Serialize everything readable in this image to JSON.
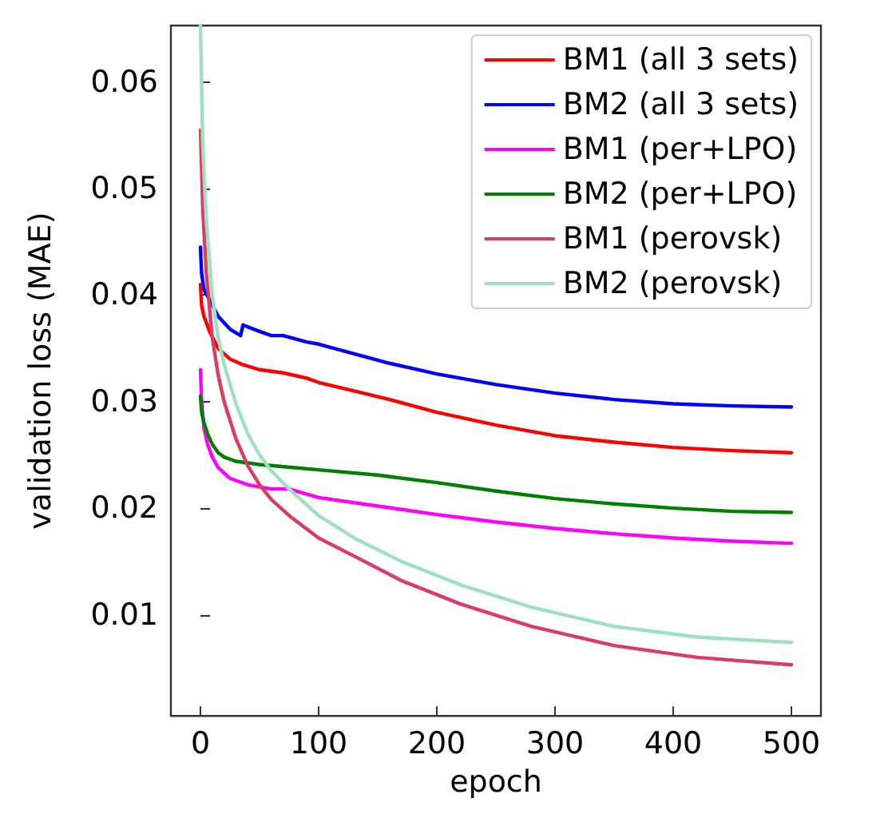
{
  "chart_data": {
    "type": "line",
    "xlabel": "epoch",
    "ylabel": "validation loss (MAE)",
    "xlim": [
      -25,
      525
    ],
    "xticks": [
      0,
      100,
      200,
      300,
      400,
      500
    ],
    "ylim": [
      0.0005,
      0.0653
    ],
    "yticks": [
      0.01,
      0.02,
      0.03,
      0.04,
      0.05,
      0.06
    ],
    "grid": false,
    "legend": "top right",
    "line_style": "solid",
    "marker": "none",
    "series": [
      {
        "name": "BM1 (all 3 sets)",
        "color": "#ff0000",
        "x": [
          0,
          1,
          3,
          8,
          15,
          20,
          25,
          35,
          50,
          70,
          90,
          100,
          130,
          160,
          200,
          250,
          300,
          350,
          400,
          450,
          500
        ],
        "values": [
          0.041,
          0.039,
          0.038,
          0.0365,
          0.035,
          0.0345,
          0.034,
          0.0335,
          0.033,
          0.0327,
          0.0322,
          0.0318,
          0.031,
          0.0302,
          0.029,
          0.0278,
          0.0268,
          0.0262,
          0.0257,
          0.0254,
          0.0252
        ]
      },
      {
        "name": "BM2 (all 3 sets)",
        "color": "#0000ff",
        "x": [
          0,
          1,
          3,
          8,
          15,
          25,
          34,
          36,
          45,
          60,
          70,
          90,
          100,
          130,
          160,
          200,
          250,
          300,
          350,
          400,
          450,
          500
        ],
        "values": [
          0.0445,
          0.042,
          0.0405,
          0.0395,
          0.038,
          0.0368,
          0.0362,
          0.0372,
          0.0368,
          0.0362,
          0.0362,
          0.0356,
          0.0354,
          0.0345,
          0.0336,
          0.0326,
          0.0316,
          0.0308,
          0.0302,
          0.0298,
          0.0296,
          0.0295
        ]
      },
      {
        "name": "BM1 (per+LPO)",
        "color": "#ff00ff",
        "x": [
          0,
          1,
          3,
          6,
          10,
          15,
          25,
          40,
          60,
          75,
          100,
          150,
          200,
          250,
          300,
          350,
          400,
          450,
          500
        ],
        "values": [
          0.033,
          0.03,
          0.0275,
          0.026,
          0.0248,
          0.0238,
          0.0228,
          0.0222,
          0.0218,
          0.0218,
          0.021,
          0.0202,
          0.0194,
          0.0187,
          0.0181,
          0.0176,
          0.0172,
          0.0169,
          0.0167
        ]
      },
      {
        "name": "BM2 (per+LPO)",
        "color": "#008000",
        "x": [
          0,
          1,
          3,
          6,
          10,
          15,
          20,
          30,
          50,
          80,
          100,
          150,
          200,
          250,
          300,
          350,
          400,
          450,
          500
        ],
        "values": [
          0.0305,
          0.029,
          0.028,
          0.027,
          0.026,
          0.0252,
          0.0248,
          0.0244,
          0.0241,
          0.0238,
          0.0236,
          0.0231,
          0.0224,
          0.0216,
          0.0209,
          0.0204,
          0.02,
          0.0197,
          0.0196
        ]
      },
      {
        "name": "BM1 (perovsk)",
        "color": "#dc3b63",
        "x": [
          0,
          2,
          5,
          10,
          15,
          20,
          30,
          40,
          50,
          60,
          75,
          100,
          130,
          170,
          220,
          280,
          350,
          420,
          500
        ],
        "values": [
          0.0555,
          0.048,
          0.042,
          0.036,
          0.0325,
          0.03,
          0.0265,
          0.024,
          0.0222,
          0.0208,
          0.0193,
          0.0172,
          0.0155,
          0.0132,
          0.011,
          0.0089,
          0.0071,
          0.006,
          0.0053
        ]
      },
      {
        "name": "BM2 (perovsk)",
        "color": "#9fe0c0",
        "x": [
          0,
          2,
          5,
          10,
          15,
          20,
          30,
          40,
          50,
          60,
          75,
          100,
          130,
          170,
          220,
          280,
          350,
          420,
          500
        ],
        "values": [
          0.0653,
          0.054,
          0.047,
          0.04,
          0.036,
          0.0335,
          0.0298,
          0.027,
          0.025,
          0.0235,
          0.0218,
          0.0193,
          0.0172,
          0.015,
          0.0128,
          0.0107,
          0.0089,
          0.0079,
          0.0074
        ]
      }
    ]
  }
}
